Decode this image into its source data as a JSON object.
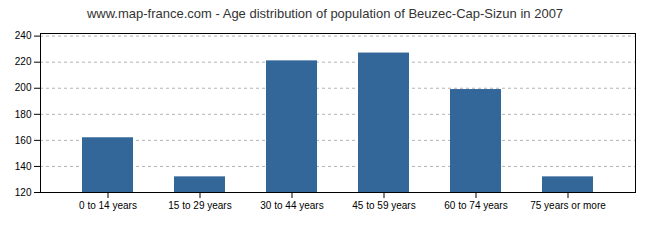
{
  "chart_data": {
    "type": "bar",
    "title": "www.map-france.com - Age distribution of population of Beuzec-Cap-Sizun in 2007",
    "categories": [
      "0 to 14 years",
      "15 to 29 years",
      "30 to 44 years",
      "45 to 59 years",
      "60 to 74 years",
      "75 years or more"
    ],
    "values": [
      162,
      132,
      221,
      227,
      199,
      132
    ],
    "color": "#336699",
    "ylim": [
      120,
      242
    ],
    "yticks": [
      120,
      140,
      160,
      180,
      200,
      220,
      240
    ],
    "grid": true
  }
}
